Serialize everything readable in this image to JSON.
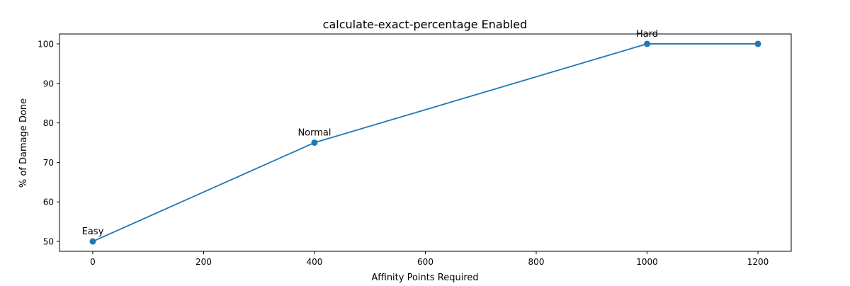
{
  "chart_data": {
    "type": "line",
    "title": "calculate-exact-percentage Enabled",
    "xlabel": "Affinity Points Required",
    "ylabel": "% of Damage Done",
    "xlim": [
      -60,
      1260
    ],
    "ylim": [
      47.5,
      102.5
    ],
    "x_ticks": [
      0,
      200,
      400,
      600,
      800,
      1000,
      1200
    ],
    "y_ticks": [
      50,
      60,
      70,
      80,
      90,
      100
    ],
    "grid": false,
    "series": [
      {
        "color": "#1f77b4",
        "marker": "circle",
        "points": [
          {
            "x": 0,
            "y": 50,
            "label": "Easy"
          },
          {
            "x": 400,
            "y": 75,
            "label": "Normal"
          },
          {
            "x": 1000,
            "y": 100,
            "label": "Hard"
          },
          {
            "x": 1200,
            "y": 100,
            "label": ""
          }
        ]
      }
    ]
  }
}
